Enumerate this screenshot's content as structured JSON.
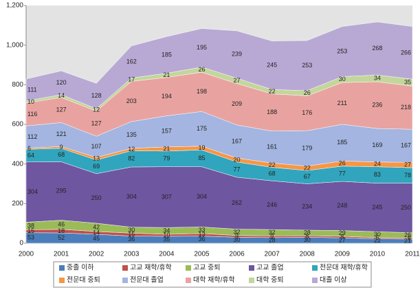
{
  "chart_data": {
    "type": "stacked_area",
    "categories": [
      "2000",
      "2001",
      "2002",
      "2003",
      "2004",
      "2005",
      "2006",
      "2007",
      "2008",
      "2009",
      "2010",
      "2011"
    ],
    "ylim": [
      0,
      1200
    ],
    "yticks": [
      0,
      200,
      400,
      600,
      800,
      {
        "value": 1000,
        "label": "1,000"
      },
      {
        "value": 1200,
        "label": "1,200"
      }
    ],
    "legend": "bottom",
    "series": [
      {
        "name": "중졸 이하",
        "color": "#4a7ebb",
        "values": [
          53,
          52,
          45,
          36,
          35,
          36,
          30,
          28,
          30,
          27,
          22,
          21
        ]
      },
      {
        "name": "고교 재학/휴학",
        "color": "#c0504d",
        "values": [
          15,
          18,
          14,
          15,
          10,
          13,
          9,
          9,
          8,
          8,
          6,
          6
        ]
      },
      {
        "name": "고교 중퇴",
        "color": "#9bbb59",
        "values": [
          38,
          46,
          42,
          30,
          34,
          33,
          32,
          32,
          28,
          29,
          30,
          26
        ]
      },
      {
        "name": "고교 졸업",
        "color": "#6f56a0",
        "values": [
          304,
          295,
          250,
          304,
          307,
          304,
          262,
          246,
          234,
          248,
          245,
          250
        ]
      },
      {
        "name": "전문대 재학/휴학",
        "color": "#31a5bd",
        "values": [
          64,
          68,
          69,
          82,
          79,
          85,
          77,
          68,
          67,
          77,
          83,
          78
        ]
      },
      {
        "name": "전문대 중퇴",
        "color": "#f79646",
        "values": [
          6,
          9,
          13,
          12,
          21,
          19,
          20,
          22,
          22,
          26,
          24,
          27
        ]
      },
      {
        "name": "전문대 졸업",
        "color": "#a3b5e0",
        "values": [
          112,
          121,
          107,
          135,
          157,
          175,
          167,
          161,
          179,
          185,
          169,
          167
        ]
      },
      {
        "name": "대학 재학/휴학",
        "color": "#e8a3a1",
        "values": [
          116,
          127,
          127,
          203,
          194,
          198,
          209,
          188,
          176,
          211,
          236,
          218
        ]
      },
      {
        "name": "대학 중퇴",
        "color": "#c3d69b",
        "values": [
          10,
          14,
          12,
          17,
          21,
          26,
          27,
          22,
          26,
          30,
          34,
          35
        ]
      },
      {
        "name": "대졸 이상",
        "color": "#b8a9d4",
        "values": [
          111,
          120,
          128,
          162,
          185,
          195,
          239,
          245,
          253,
          253,
          268,
          266
        ]
      }
    ]
  }
}
